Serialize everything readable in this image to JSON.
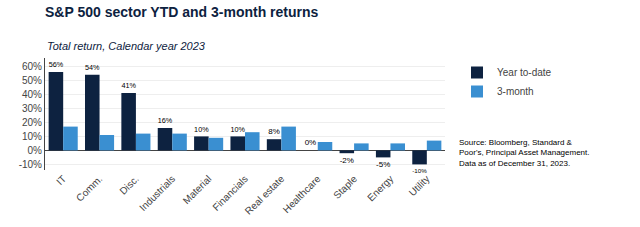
{
  "chart_data": {
    "type": "bar",
    "title": "S&P 500 sector YTD and 3-month returns",
    "subtitle": "Total return, Calendar year 2023",
    "categories": [
      "IT",
      "Comm.",
      "Disc.",
      "Industrials",
      "Material",
      "Financials",
      "Real estate",
      "Healthcare",
      "Staple",
      "Energy",
      "Utility"
    ],
    "series": [
      {
        "name": "Year to-date",
        "color": "#0d2240",
        "values": [
          56,
          54,
          41,
          16,
          10,
          10,
          8,
          0,
          -2,
          -5,
          -10
        ],
        "data_labels": true,
        "value_labels": [
          "56%",
          "54%",
          "41%",
          "16%",
          "10%",
          "10%",
          "8%",
          "0%",
          "-2%",
          "-5%",
          "-10%"
        ]
      },
      {
        "name": "3-month",
        "color": "#3a8fd1",
        "values": [
          17,
          11,
          12,
          12,
          9,
          13,
          17,
          6,
          5,
          5,
          7
        ]
      }
    ],
    "ylim": [
      -14,
      66
    ],
    "yticks": [
      {
        "value": -10,
        "label": "-10%"
      },
      {
        "value": 0,
        "label": "0%"
      },
      {
        "value": 10,
        "label": "10%"
      },
      {
        "value": 20,
        "label": "20%"
      },
      {
        "value": 30,
        "label": "30%"
      },
      {
        "value": 40,
        "label": "40%"
      },
      {
        "value": 50,
        "label": "50%"
      },
      {
        "value": 60,
        "label": "60%"
      }
    ],
    "grid": true,
    "legend": "upper right",
    "annotations": [
      "Source: Bloomberg, Standard &\nPoor's, Principal Asset Management.\nData as of December 31, 2023."
    ]
  }
}
